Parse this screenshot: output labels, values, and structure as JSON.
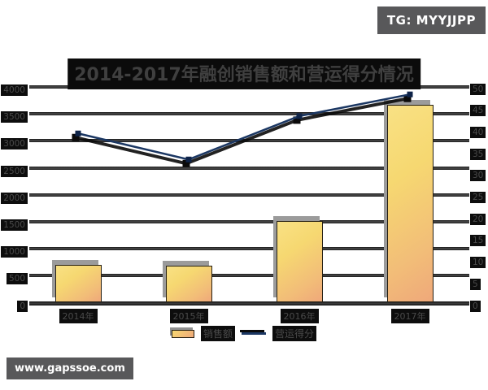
{
  "badges": {
    "telegram": "TG: MYYJJPP",
    "website": "www.gapssoe.com"
  },
  "legend": [
    {
      "label": "销售额"
    },
    {
      "label": "营运得分"
    }
  ],
  "chart_data": {
    "type": "bar",
    "combo": "bar+line",
    "title": "2014-2017年融创销售额和营运得分情况",
    "categories": [
      "2014年",
      "2015年",
      "2016年",
      "2017年"
    ],
    "series": [
      {
        "name": "销售额",
        "type": "bar",
        "axis": "left",
        "values": [
          700,
          690,
          1510,
          3670
        ]
      },
      {
        "name": "营运得分",
        "type": "line",
        "axis": "right",
        "values": [
          39,
          33,
          43,
          48
        ]
      }
    ],
    "left_axis": {
      "min": 0,
      "max": 4000,
      "step": 500,
      "tick_labels": [
        "0",
        "500",
        "1000",
        "1500",
        "2000",
        "2500",
        "3000",
        "3500",
        "4000"
      ]
    },
    "right_axis": {
      "min": 0,
      "max": 50,
      "step": 5,
      "tick_labels": [
        "0",
        "5",
        "10",
        "15",
        "20",
        "25",
        "30",
        "35",
        "40",
        "45",
        "50"
      ]
    },
    "grid": true,
    "legend_position": "bottom",
    "colors": {
      "background": "#ffffff",
      "bar_gradient_top": "#f7d971",
      "bar_gradient_bottom": "#efa87a",
      "bar_border": "#262014",
      "bar_shadow": "#9b9b9b",
      "line": "#1b3763",
      "line_shadow": "#0a0a0a",
      "grid": "#2e2e2e",
      "label_bg": "#0d0d0d",
      "label_fg": "#484848",
      "badge_bg": "#58585a",
      "badge_fg": "#ffffff"
    }
  }
}
